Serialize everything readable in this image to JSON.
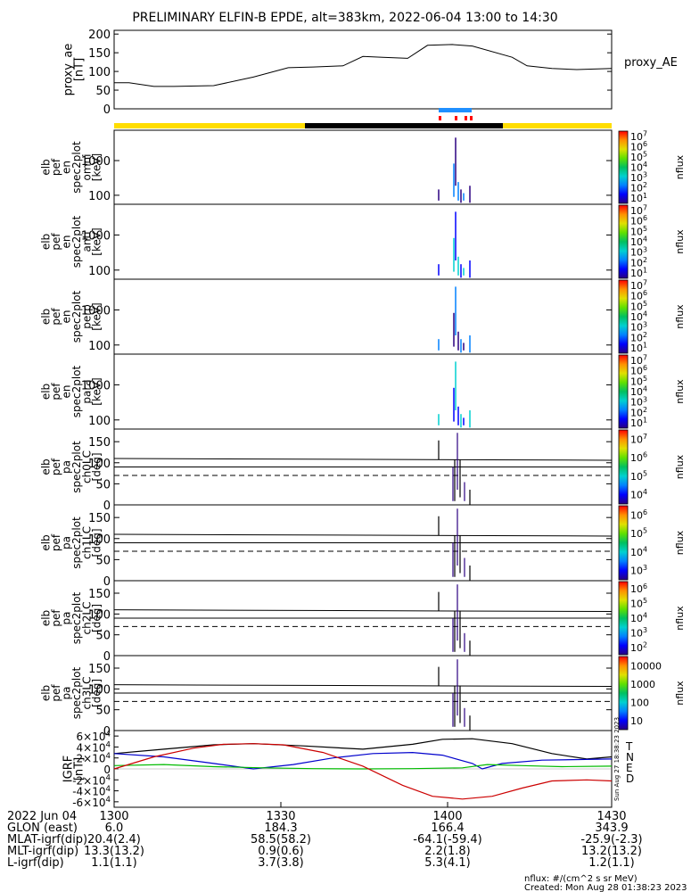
{
  "title": "PRELIMINARY ELFIN-B EPDE, alt=383km, 2022-06-04 13:00 to 14:30",
  "chart_data": [
    {
      "type": "line",
      "panel": "proxy_ae",
      "ylabel": [
        "proxy_ae",
        "[nT]"
      ],
      "legend": "proxy_AE",
      "ylim": [
        0,
        210
      ],
      "yticks": [
        0,
        50,
        100,
        150,
        200
      ],
      "x": [
        0,
        3,
        8,
        12,
        20,
        28,
        35,
        40,
        46,
        50,
        54,
        59,
        63,
        68,
        72,
        80,
        83,
        88,
        93,
        100
      ],
      "y": [
        70,
        70,
        60,
        60,
        62,
        85,
        110,
        112,
        115,
        140,
        138,
        135,
        170,
        172,
        168,
        138,
        115,
        108,
        105,
        108
      ]
    },
    {
      "type": "heatmap",
      "panel": "elb_pef_en_spec2plot_omni",
      "ylabel": [
        "elb",
        "pef",
        "en",
        "spec2plot",
        "omni",
        "[keV]"
      ],
      "zlabel": "nflux",
      "yscale": "log",
      "yticks": [
        100,
        1000
      ],
      "zticks": [
        "10^1",
        "10^2",
        "10^3",
        "10^4",
        "10^5",
        "10^6",
        "10^7"
      ]
    },
    {
      "type": "heatmap",
      "panel": "elb_pef_en_spec2plot_anti",
      "ylabel": [
        "elb",
        "pef",
        "en",
        "spec2plot",
        "anti",
        "[keV]"
      ],
      "zlabel": "nflux",
      "yscale": "log",
      "yticks": [
        100,
        1000
      ],
      "zticks": [
        "10^1",
        "10^2",
        "10^3",
        "10^4",
        "10^5",
        "10^6",
        "10^7"
      ]
    },
    {
      "type": "heatmap",
      "panel": "elb_pef_en_spec2plot_perp",
      "ylabel": [
        "elb",
        "pef",
        "en",
        "spec2plot",
        "perp",
        "[keV]"
      ],
      "zlabel": "nflux",
      "yscale": "log",
      "yticks": [
        100,
        1000
      ],
      "zticks": [
        "10^1",
        "10^2",
        "10^3",
        "10^4",
        "10^5",
        "10^6",
        "10^7"
      ]
    },
    {
      "type": "heatmap",
      "panel": "elb_pef_en_spec2plot_para",
      "ylabel": [
        "elb",
        "pef",
        "en",
        "spec2plot",
        "para",
        "[keV]"
      ],
      "zlabel": "nflux",
      "yscale": "log",
      "yticks": [
        100,
        1000
      ],
      "zticks": [
        "10^1",
        "10^2",
        "10^3",
        "10^4",
        "10^5",
        "10^6",
        "10^7"
      ]
    },
    {
      "type": "heatmap",
      "panel": "elb_pef_pa_spec2plot_ch0LC",
      "ylabel": [
        "elb",
        "pef",
        "pa",
        "spec2plot",
        "ch0LC",
        "[deg]"
      ],
      "zlabel": "nflux",
      "ylim": [
        0,
        180
      ],
      "yticks": [
        0,
        50,
        100,
        150
      ],
      "zticks": [
        "10^4",
        "10^5",
        "10^6",
        "10^7"
      ]
    },
    {
      "type": "heatmap",
      "panel": "elb_pef_pa_spec2plot_ch1LC",
      "ylabel": [
        "elb",
        "pef",
        "pa",
        "spec2plot",
        "ch1LC",
        "[deg]"
      ],
      "zlabel": "nflux",
      "ylim": [
        0,
        180
      ],
      "yticks": [
        0,
        50,
        100,
        150
      ],
      "zticks": [
        "10^3",
        "10^4",
        "10^5",
        "10^6"
      ]
    },
    {
      "type": "heatmap",
      "panel": "elb_pef_pa_spec2plot_ch2LC",
      "ylabel": [
        "elb",
        "pef",
        "pa",
        "spec2plot",
        "ch2LC",
        "[deg]"
      ],
      "zlabel": "nflux",
      "ylim": [
        0,
        180
      ],
      "yticks": [
        0,
        50,
        100,
        150
      ],
      "zticks": [
        "10^2",
        "10^3",
        "10^4",
        "10^5",
        "10^6"
      ]
    },
    {
      "type": "heatmap",
      "panel": "elb_pef_pa_spec2plot_ch3LC",
      "ylabel": [
        "elb",
        "pef",
        "pa",
        "spec2plot",
        "ch3LC",
        "[deg]"
      ],
      "zlabel": "nflux",
      "ylim": [
        0,
        180
      ],
      "yticks": [
        0,
        50,
        100,
        150
      ],
      "zticks": [
        "10",
        "100",
        "1000",
        "10000"
      ]
    },
    {
      "type": "line",
      "panel": "IGRF",
      "ylabel": [
        "IGRF",
        "[nT]"
      ],
      "ylim": [
        -70000,
        70000
      ],
      "yticks": [
        "6x10^4",
        "4x10^4",
        "2x10^4",
        "0",
        "-2x10^4",
        "-4x10^4",
        "-6x10^4"
      ],
      "series": [
        {
          "name": "T",
          "color": "#000000",
          "x": [
            0,
            10,
            20,
            28,
            38,
            50,
            60,
            66,
            72,
            80,
            88,
            95,
            100
          ],
          "y": [
            28000,
            36000,
            44000,
            46000,
            42000,
            36000,
            45000,
            54000,
            55000,
            46000,
            28000,
            18000,
            22000
          ]
        },
        {
          "name": "N",
          "color": "#0000cc",
          "x": [
            0,
            10,
            20,
            28,
            36,
            44,
            52,
            60,
            66,
            72,
            74,
            78,
            86,
            100
          ],
          "y": [
            28000,
            22000,
            10000,
            0,
            8000,
            20000,
            28000,
            30000,
            25000,
            10000,
            0,
            10000,
            16000,
            18000
          ]
        },
        {
          "name": "E",
          "color": "#00bb00",
          "x": [
            0,
            10,
            20,
            30,
            40,
            50,
            60,
            70,
            75,
            82,
            90,
            100
          ],
          "y": [
            6000,
            8000,
            4000,
            2000,
            500,
            0,
            500,
            2000,
            8000,
            6000,
            4000,
            5000
          ]
        },
        {
          "name": "D",
          "color": "#cc0000",
          "x": [
            0,
            8,
            16,
            22,
            28,
            34,
            42,
            50,
            58,
            64,
            70,
            76,
            82,
            88,
            95,
            100
          ],
          "y": [
            0,
            22000,
            38000,
            45000,
            46000,
            44000,
            30000,
            5000,
            -30000,
            -50000,
            -55000,
            -50000,
            -35000,
            -22000,
            -20000,
            -22000
          ]
        }
      ]
    }
  ],
  "axis": {
    "time_ticks": [
      "1300",
      "1330",
      "1400",
      "1430"
    ],
    "rows": [
      {
        "label": "2022 Jun 04",
        "values": [
          "1300",
          "1330",
          "1400",
          "1430"
        ]
      },
      {
        "label": "GLON (east)",
        "values": [
          "6.0",
          "184.3",
          "166.4",
          "343.9"
        ]
      },
      {
        "label": "MLAT-igrf(dip)",
        "values": [
          "20.4(2.4)",
          "58.5(58.2)",
          "-64.1(-59.4)",
          "-25.9(-2.3)"
        ]
      },
      {
        "label": "MLT-igrf(dip)",
        "values": [
          "13.3(13.2)",
          "0.9(0.6)",
          "2.2(1.8)",
          "13.2(13.2)"
        ]
      },
      {
        "label": "L-igrf(dip)",
        "values": [
          "1.1(1.1)",
          "3.7(3.8)",
          "5.3(4.1)",
          "1.2(1.1)"
        ]
      }
    ]
  },
  "footer": {
    "units": "nflux: #/(cm^2 s sr MeV)",
    "created": "Created: Mon Aug 28 01:38:23 2023",
    "side_stamp": "Sun Aug 27 18:38:23 2023"
  },
  "colors": {
    "day": "#ffdd00",
    "night": "#000000",
    "fast_blue": "#1f8fff",
    "science_red": "#ff0000"
  }
}
